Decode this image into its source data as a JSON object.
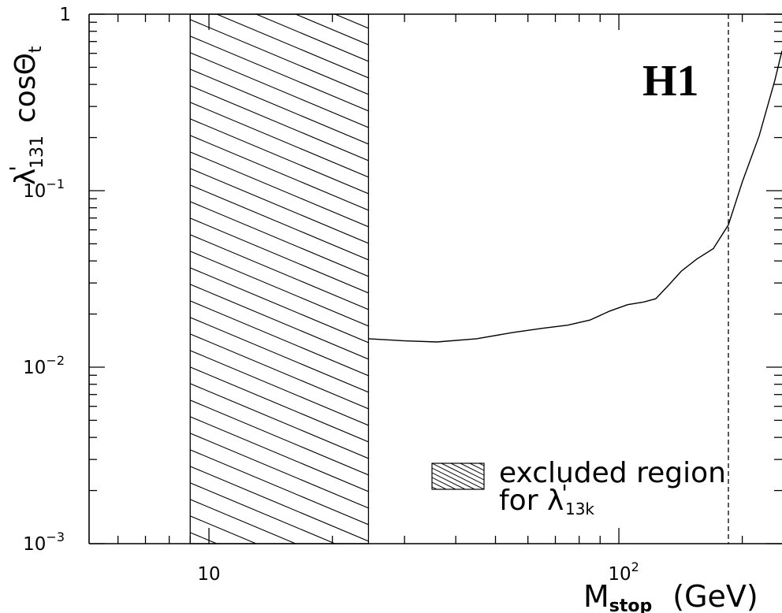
{
  "chart_data": {
    "type": "line",
    "title": "H1",
    "xlabel": {
      "main": "M",
      "sub": "stop",
      "unit": "(GeV)"
    },
    "ylabel": {
      "lambda": "λ",
      "prime": "'",
      "sub": "131",
      "cos": "cos",
      "theta": "Θ",
      "theta_sub": "t"
    },
    "x_scale": "log",
    "y_scale": "log",
    "xlim": [
      5.1,
      250
    ],
    "ylim": [
      0.001,
      1
    ],
    "x_ticks": [
      {
        "value": 10,
        "base": "10",
        "exp": ""
      },
      {
        "value": 100,
        "base": "10",
        "exp": "2"
      }
    ],
    "y_ticks": [
      {
        "value": 1,
        "base": "1",
        "exp": ""
      },
      {
        "value": 0.1,
        "base": "10",
        "exp": "−1"
      },
      {
        "value": 0.01,
        "base": "10",
        "exp": "−2"
      },
      {
        "value": 0.001,
        "base": "10",
        "exp": "−3"
      }
    ],
    "excluded_band": {
      "x_from": 9,
      "x_to": 24.5
    },
    "vertical_line": {
      "x": 185,
      "style": "dashed"
    },
    "series": [
      {
        "points": [
          [
            24.5,
            0.0145
          ],
          [
            30,
            0.0141
          ],
          [
            36,
            0.0139
          ],
          [
            45,
            0.0145
          ],
          [
            55,
            0.0157
          ],
          [
            65,
            0.0166
          ],
          [
            75,
            0.0173
          ],
          [
            85,
            0.0185
          ],
          [
            95,
            0.0208
          ],
          [
            105,
            0.0226
          ],
          [
            115,
            0.0234
          ],
          [
            123,
            0.0244
          ],
          [
            132,
            0.029
          ],
          [
            142,
            0.035
          ],
          [
            155,
            0.041
          ],
          [
            170,
            0.047
          ],
          [
            185,
            0.064
          ],
          [
            200,
            0.112
          ],
          [
            220,
            0.205
          ],
          [
            240,
            0.42
          ],
          [
            250,
            0.62
          ]
        ]
      }
    ],
    "legend": {
      "position": "bottom-right",
      "entries": [
        {
          "line1": "excluded region",
          "line2_prefix": "for ",
          "symbol": "λ",
          "prime": "'",
          "sub": "13k"
        }
      ]
    }
  }
}
